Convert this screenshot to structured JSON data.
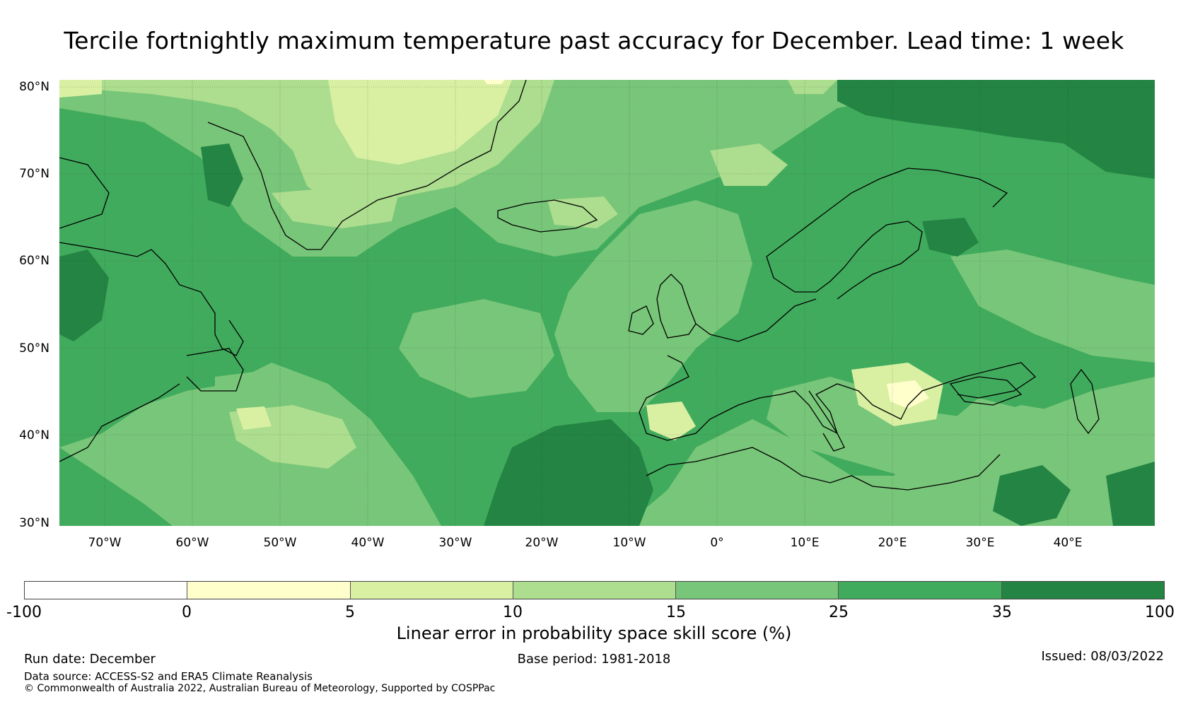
{
  "title": "Tercile fortnightly maximum temperature past accuracy for December. Lead time: 1 week",
  "lat_labels": [
    "80°N",
    "70°N",
    "60°N",
    "50°N",
    "40°N",
    "30°N"
  ],
  "lon_labels": [
    "70°W",
    "60°W",
    "50°W",
    "40°W",
    "30°W",
    "20°W",
    "10°W",
    "0°",
    "10°E",
    "20°E",
    "30°E",
    "40°E"
  ],
  "colorbar": {
    "ticks": [
      "-100",
      "0",
      "5",
      "10",
      "15",
      "25",
      "35",
      "100"
    ],
    "colors": [
      "#ffffff",
      "#ffffcc",
      "#d9f0a3",
      "#addd8e",
      "#78c679",
      "#41ab5d",
      "#238443"
    ],
    "label": "Linear error in probability space skill score (%)"
  },
  "footer": {
    "run_date": "Run date: December",
    "base_period": "Base period: 1981-2018",
    "issued": "Issued: 08/03/2022",
    "data_source": "Data source: ACCESS-S2 and ERA5 Climate Reanalysis",
    "copyright": "© Commonwealth of Australia 2022, Australian Bureau of Meteorology, Supported by COSPPac"
  }
}
